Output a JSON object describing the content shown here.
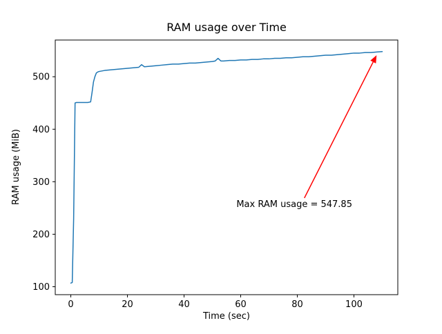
{
  "chart_data": {
    "type": "line",
    "title": "RAM usage over Time",
    "xlabel": "Time (sec)",
    "ylabel": "RAM usage (MiB)",
    "xlim": [
      -5.5,
      115.5
    ],
    "ylim": [
      84.9,
      569.9
    ],
    "xticks": [
      0,
      20,
      40,
      60,
      80,
      100
    ],
    "yticks": [
      100,
      200,
      300,
      400,
      500
    ],
    "grid": false,
    "legend": "none",
    "line_color": "#1f77b4",
    "line_width": 1.5,
    "series": [
      {
        "name": "RAM usage",
        "x": [
          0,
          0.5,
          1,
          1.5,
          2,
          3,
          4,
          5,
          6,
          7,
          7.5,
          8,
          8.5,
          9,
          9.5,
          10,
          11,
          12,
          14,
          16,
          18,
          20,
          22,
          24,
          25,
          26,
          28,
          30,
          32,
          34,
          36,
          38,
          40,
          42,
          44,
          46,
          48,
          50,
          51,
          52,
          53,
          54,
          56,
          58,
          60,
          62,
          64,
          66,
          68,
          70,
          72,
          74,
          76,
          78,
          80,
          82,
          84,
          86,
          88,
          90,
          92,
          94,
          96,
          98,
          100,
          102,
          104,
          106,
          108,
          110
        ],
        "y": [
          107,
          108,
          230,
          450,
          451,
          451,
          451,
          451,
          451,
          452,
          470,
          490,
          500,
          507,
          509,
          510,
          511,
          512,
          513,
          514,
          515,
          516,
          517,
          518,
          523,
          519,
          520,
          521,
          522,
          523,
          524,
          524,
          525,
          526,
          526,
          527,
          528,
          529,
          530,
          535,
          530,
          530,
          531,
          531,
          532,
          532,
          533,
          533,
          534,
          534,
          535,
          535,
          536,
          536,
          537,
          538,
          538,
          539,
          540,
          541,
          541,
          542,
          543,
          544,
          545,
          545,
          546,
          546,
          547,
          547.85
        ]
      }
    ],
    "annotation": {
      "text": "Max RAM usage = 547.85",
      "color": "#ff0000",
      "text_pos": [
        58.5,
        252
      ],
      "arrow_tail": [
        82.5,
        269
      ],
      "arrow_tip": [
        108,
        541
      ]
    }
  }
}
